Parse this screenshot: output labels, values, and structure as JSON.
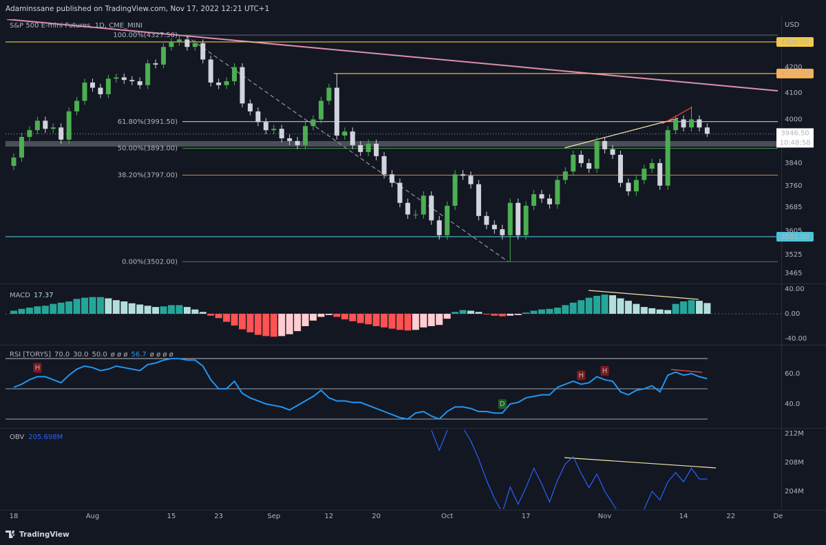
{
  "header": {
    "text": "Adaminssane published on TradingView.com, Nov 17, 2022 12:21 UTC+1"
  },
  "footer": {
    "brand": "TradingView"
  },
  "chart_data": [
    {
      "type": "candlestick",
      "title": "S&P 500 E-mini Futures, 1D, CME_MINI",
      "currency": "USD",
      "open": [
        3830,
        3860,
        3935,
        3960,
        3995,
        3965,
        3970,
        3925,
        4030,
        4070,
        4140,
        4120,
        4095,
        4155,
        4160,
        4150,
        4145,
        4130,
        4215,
        4210,
        4280,
        4300,
        4310,
        4280,
        4295,
        4230,
        4140,
        4130,
        4145,
        4200,
        4060,
        4030,
        3990,
        3960,
        3965,
        3930,
        3920,
        3905,
        3975,
        4000,
        4070,
        4120,
        3940,
        3955,
        3905,
        3880,
        3910,
        3865,
        3800,
        3770,
        3700,
        3660,
        3660,
        3725,
        3640,
        3590,
        3690,
        3800,
        3795,
        3765,
        3655,
        3625,
        3610,
        3590,
        3700,
        3590,
        3690,
        3730,
        3715,
        3695,
        3780,
        3810,
        3870,
        3840,
        3820,
        3920,
        3890,
        3870,
        3770,
        3740,
        3780,
        3820,
        3840,
        3760,
        3960,
        4000,
        3970,
        4000,
        3970
      ],
      "high": [
        3875,
        3950,
        3975,
        4010,
        4010,
        3985,
        3985,
        4045,
        4085,
        4155,
        4155,
        4135,
        4170,
        4175,
        4175,
        4165,
        4160,
        4230,
        4230,
        4295,
        4315,
        4327.5,
        4325,
        4310,
        4310,
        4245,
        4155,
        4160,
        4215,
        4215,
        4075,
        4045,
        4005,
        3980,
        3980,
        3945,
        3935,
        3990,
        4015,
        4085,
        4135,
        4175,
        3970,
        3970,
        3920,
        3925,
        3925,
        3880,
        3815,
        3785,
        3715,
        3675,
        3740,
        3740,
        3655,
        3705,
        3815,
        3815,
        3810,
        3780,
        3670,
        3640,
        3625,
        3715,
        3715,
        3705,
        3745,
        3745,
        3730,
        3795,
        3825,
        3885,
        3885,
        3855,
        3935,
        3935,
        3905,
        3885,
        3785,
        3795,
        3835,
        3855,
        3855,
        3975,
        4015,
        4015,
        4050,
        4015,
        3985
      ],
      "low": [
        3815,
        3845,
        3920,
        3945,
        3950,
        3950,
        3910,
        3910,
        4015,
        4055,
        4105,
        4080,
        4080,
        4140,
        4135,
        4130,
        4115,
        4115,
        4195,
        4195,
        4265,
        4285,
        4265,
        4265,
        4215,
        4125,
        4115,
        4115,
        4130,
        4045,
        4015,
        3975,
        3945,
        3945,
        3915,
        3905,
        3890,
        3890,
        3960,
        3985,
        4055,
        3925,
        3925,
        3890,
        3865,
        3865,
        3850,
        3785,
        3755,
        3685,
        3645,
        3645,
        3645,
        3625,
        3575,
        3575,
        3675,
        3780,
        3750,
        3640,
        3610,
        3595,
        3575,
        3502,
        3575,
        3575,
        3675,
        3700,
        3680,
        3680,
        3765,
        3795,
        3825,
        3805,
        3805,
        3875,
        3855,
        3755,
        3725,
        3725,
        3765,
        3805,
        3745,
        3745,
        3945,
        3955,
        3955,
        3955,
        3935
      ],
      "close": [
        3860,
        3935,
        3960,
        3995,
        3965,
        3970,
        3925,
        4030,
        4070,
        4140,
        4120,
        4095,
        4155,
        4160,
        4150,
        4145,
        4130,
        4215,
        4210,
        4280,
        4300,
        4310,
        4280,
        4295,
        4230,
        4140,
        4130,
        4145,
        4200,
        4060,
        4030,
        3990,
        3960,
        3965,
        3930,
        3920,
        3905,
        3975,
        4000,
        4070,
        4120,
        3940,
        3955,
        3905,
        3880,
        3910,
        3865,
        3800,
        3770,
        3700,
        3660,
        3660,
        3725,
        3640,
        3590,
        3690,
        3800,
        3795,
        3765,
        3655,
        3625,
        3610,
        3590,
        3700,
        3590,
        3690,
        3730,
        3715,
        3695,
        3780,
        3810,
        3870,
        3840,
        3820,
        3920,
        3890,
        3870,
        3770,
        3740,
        3780,
        3820,
        3840,
        3760,
        3960,
        4000,
        3970,
        4000,
        3970,
        3946.5
      ],
      "up_color": "#4caf50",
      "down_color": "#d1d4dc",
      "log_scale": true,
      "ylim": [
        3436,
        4392
      ],
      "yticks": [
        4200,
        4100,
        4000,
        3840,
        3760,
        3685,
        3605,
        3525,
        3465
      ],
      "xlim": [
        -1.05,
        97.4
      ],
      "xticks": [
        {
          "value": 0,
          "label": "18"
        },
        {
          "value": 10,
          "label": "Aug"
        },
        {
          "value": 20,
          "label": "15"
        },
        {
          "value": 26,
          "label": "23"
        },
        {
          "value": 33,
          "label": "Sep"
        },
        {
          "value": 40,
          "label": "12"
        },
        {
          "value": 46,
          "label": "20"
        },
        {
          "value": 55,
          "label": "Oct"
        },
        {
          "value": 65,
          "label": "17"
        },
        {
          "value": 75,
          "label": "Nov"
        },
        {
          "value": 85,
          "label": "14"
        },
        {
          "value": 91,
          "label": "22"
        },
        {
          "value": 97,
          "label": "De"
        }
      ],
      "levels": [
        {
          "value": 4300,
          "label": "4300.00",
          "color": "#f2c94c"
        },
        {
          "value": 4175,
          "label": "4175.00",
          "color": "#f6b25a"
        },
        {
          "value": 3585,
          "label": "3585.00",
          "color": "#4dc3d8"
        }
      ],
      "fib_levels": [
        {
          "value": 4327.5,
          "label": "100.00%(4327.50)",
          "color": "#787b86"
        },
        {
          "value": 3991.5,
          "label": "61.80%(3991.50)",
          "color": "#ffffff"
        },
        {
          "value": 3893,
          "label": "50.00%(3893.00)",
          "color": "#4caf50"
        },
        {
          "value": 3797,
          "label": "38.20%(3797.00)",
          "color": "#e0a060"
        },
        {
          "value": 3502,
          "label": "0.00%(3502.00)",
          "color": "#787b86"
        }
      ],
      "last_price": {
        "value": 3946.5,
        "label": "3946.50"
      },
      "countdown": "10:48:58"
    },
    {
      "type": "bar",
      "title": "MACD",
      "values": [
        5,
        8,
        10,
        12,
        13,
        16,
        18,
        20,
        24,
        26,
        27,
        27,
        25,
        22,
        20,
        17,
        15,
        13,
        11,
        12,
        14,
        14,
        11,
        7,
        3,
        -3,
        -7,
        -13,
        -19,
        -25,
        -30,
        -34,
        -36,
        -37,
        -36,
        -33,
        -28,
        -20,
        -11,
        -5,
        -2,
        -5,
        -9,
        -12,
        -15,
        -17,
        -20,
        -22,
        -24,
        -26,
        -27,
        -26,
        -22,
        -20,
        -18,
        -8,
        3,
        6,
        5,
        3,
        -1,
        -3,
        -4,
        -3,
        -2,
        2,
        5,
        7,
        8,
        10,
        14,
        18,
        22,
        26,
        29,
        31,
        30,
        25,
        21,
        16,
        11,
        9,
        7,
        6,
        16,
        20,
        22,
        21,
        17.37
      ],
      "colors": {
        "pos_up": "#26a69a",
        "pos_down": "#b2dfdb",
        "neg_down": "#ff5252",
        "neg_up": "#ffcdd2"
      },
      "ylim": [
        -46.7,
        45.6
      ],
      "yticks": [
        {
          "value": 40,
          "label": "40.00"
        },
        {
          "value": 0,
          "label": "0.00"
        },
        {
          "value": -40,
          "label": "-40.00"
        }
      ]
    },
    {
      "type": "line",
      "title": "RSI [TORYS]",
      "values": [
        51,
        53,
        56,
        58,
        58,
        56,
        54,
        59,
        63,
        65,
        64,
        62,
        63,
        65,
        64,
        63,
        62,
        66,
        67,
        69,
        70,
        70,
        69,
        69,
        65,
        56,
        50,
        50,
        55,
        47,
        44,
        42,
        40,
        39,
        38,
        36,
        39,
        42,
        45,
        49,
        44,
        42,
        42,
        41,
        41,
        39,
        37,
        35,
        33,
        31,
        30,
        34,
        35,
        32,
        30,
        35,
        38,
        38,
        37,
        35,
        35,
        34,
        34,
        40,
        41,
        44,
        45,
        46,
        46,
        51,
        53,
        55,
        53,
        54,
        58,
        56,
        55,
        48,
        46,
        49,
        50,
        52,
        48,
        59,
        61,
        59,
        60,
        58,
        56.7
      ],
      "color": "#2196f3",
      "bands": [
        {
          "value": 70,
          "label": "70.0"
        },
        {
          "value": 30,
          "label": "30.0"
        },
        {
          "value": 50,
          "label": "50.0"
        }
      ],
      "legend_extra": [
        "ø ø ø",
        "ø ø ø ø"
      ],
      "markers": [
        {
          "index": 3,
          "label": "H",
          "color": "#801922"
        },
        {
          "index": 72,
          "label": "H",
          "color": "#801922"
        },
        {
          "index": 75,
          "label": "H",
          "color": "#801922"
        },
        {
          "index": 62,
          "label": "D",
          "color": "#1b5e20"
        }
      ],
      "ylim": [
        25,
        77.3
      ],
      "yticks": [
        {
          "value": 60,
          "label": "60.0"
        },
        {
          "value": 40,
          "label": "40.0"
        }
      ]
    },
    {
      "type": "line",
      "title": "OBV",
      "values": [
        null,
        null,
        null,
        null,
        null,
        null,
        null,
        null,
        null,
        null,
        null,
        null,
        null,
        null,
        null,
        null,
        null,
        null,
        null,
        null,
        null,
        null,
        null,
        null,
        null,
        null,
        null,
        null,
        null,
        null,
        null,
        null,
        null,
        null,
        null,
        null,
        null,
        null,
        null,
        null,
        null,
        null,
        null,
        null,
        null,
        null,
        null,
        null,
        null,
        null,
        null,
        null,
        null,
        212.5,
        209.7,
        212.4,
        213.5,
        212.8,
        211,
        208.5,
        205.5,
        203,
        201,
        204.6,
        202.2,
        204.5,
        207.2,
        205,
        202.5,
        205.5,
        207.8,
        208.8,
        206.5,
        204.5,
        206.4,
        204,
        202.3,
        200.5,
        199.5,
        199,
        201.5,
        204,
        202.8,
        205.3,
        206.6,
        205.3,
        207.2,
        205.7,
        205.698
      ],
      "value_label": "205.698M",
      "color": "#2962ff",
      "ylim": [
        201.5,
        212.5
      ],
      "yticks": [
        {
          "value": 212,
          "label": "212M"
        },
        {
          "value": 208,
          "label": "208M"
        },
        {
          "value": 204,
          "label": "204M"
        }
      ]
    }
  ]
}
